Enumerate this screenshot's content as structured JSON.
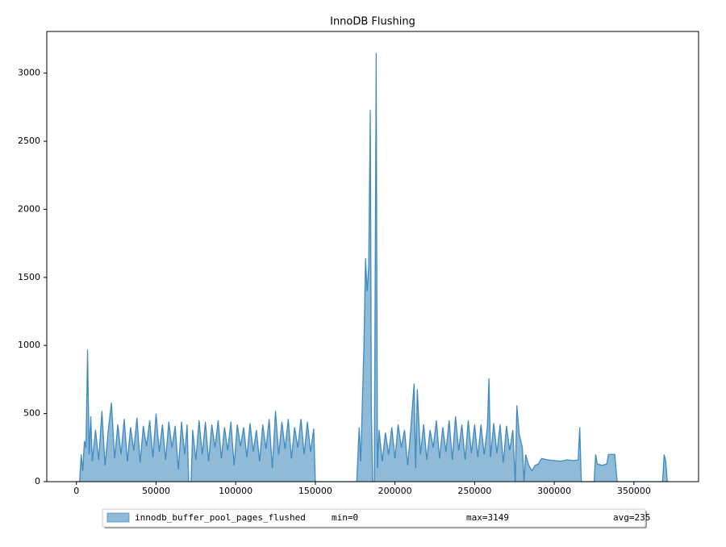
{
  "chart_data": {
    "type": "area",
    "title": "InnoDB Flushing",
    "x": [
      0,
      2000,
      3000,
      4000,
      5000,
      6000,
      7000,
      8000,
      9000,
      10000,
      12000,
      14000,
      16000,
      18000,
      20000,
      22000,
      24000,
      26000,
      28000,
      30000,
      32000,
      34000,
      36000,
      38000,
      40000,
      42000,
      44000,
      46000,
      48000,
      50000,
      52000,
      54000,
      56000,
      58000,
      60000,
      62000,
      64000,
      66000,
      68000,
      69500,
      70500,
      72000,
      73000,
      75000,
      77000,
      79000,
      81000,
      83000,
      85000,
      87000,
      89000,
      91000,
      93000,
      95000,
      97000,
      99000,
      101000,
      103000,
      105000,
      107000,
      109000,
      111000,
      113000,
      115000,
      117000,
      119000,
      121000,
      123000,
      125000,
      127000,
      129000,
      131000,
      133000,
      135000,
      137000,
      139000,
      141000,
      143000,
      145000,
      147000,
      149000,
      150000,
      176000,
      177500,
      178500,
      180500,
      181500,
      182500,
      183500,
      184500,
      185200,
      186000,
      187000,
      188200,
      189000,
      190000,
      192000,
      194000,
      196000,
      198000,
      200000,
      202000,
      204000,
      206000,
      208000,
      210000,
      212000,
      213000,
      214000,
      216000,
      218000,
      220000,
      222000,
      224000,
      226000,
      228000,
      230000,
      232000,
      234000,
      236000,
      238000,
      240000,
      242000,
      244000,
      246000,
      248000,
      250000,
      252000,
      254000,
      256000,
      258000,
      259000,
      260000,
      262000,
      264000,
      266000,
      268000,
      270000,
      272000,
      274000,
      275500,
      276500,
      278000,
      280000,
      281000,
      282000,
      284000,
      286000,
      288000,
      290000,
      292000,
      296000,
      300000,
      304000,
      308000,
      312000,
      315000,
      316000,
      317000,
      325000,
      326000,
      327000,
      330000,
      333000,
      334000,
      338000,
      339500,
      368000,
      369000,
      370000,
      371000,
      372000
    ],
    "series": [
      {
        "name": "innodb_buffer_pool_pages_flushed",
        "color": "#1f77b4",
        "values": [
          0,
          0,
          200,
          80,
          300,
          250,
          970,
          200,
          480,
          150,
          380,
          160,
          520,
          120,
          380,
          580,
          170,
          420,
          200,
          460,
          150,
          400,
          230,
          470,
          140,
          410,
          260,
          450,
          180,
          500,
          220,
          420,
          160,
          440,
          250,
          410,
          90,
          440,
          200,
          420,
          0,
          0,
          380,
          160,
          450,
          200,
          440,
          150,
          420,
          250,
          450,
          170,
          400,
          230,
          440,
          120,
          420,
          260,
          400,
          180,
          430,
          220,
          380,
          150,
          420,
          240,
          460,
          100,
          520,
          200,
          440,
          240,
          460,
          170,
          400,
          250,
          460,
          200,
          440,
          220,
          390,
          0,
          0,
          400,
          150,
          1000,
          1640,
          1400,
          1580,
          2730,
          500,
          0,
          0,
          3149,
          100,
          380,
          150,
          360,
          200,
          400,
          170,
          420,
          250,
          380,
          120,
          400,
          720,
          100,
          680,
          200,
          420,
          160,
          380,
          250,
          450,
          170,
          400,
          220,
          450,
          160,
          480,
          230,
          420,
          160,
          450,
          210,
          420,
          180,
          420,
          200,
          400,
          760,
          180,
          430,
          210,
          420,
          140,
          410,
          230,
          380,
          0,
          560,
          350,
          250,
          0,
          200,
          120,
          80,
          120,
          130,
          170,
          160,
          155,
          150,
          160,
          155,
          160,
          400,
          0,
          0,
          200,
          130,
          120,
          130,
          200,
          200,
          0,
          0,
          200,
          150,
          0,
          0
        ]
      }
    ],
    "legend_stats": [
      "min=0",
      "max=3149",
      "avg=235"
    ],
    "xlim": [
      -18600,
      390600
    ],
    "ylim": [
      0,
      3306
    ],
    "xticks": [
      0,
      50000,
      100000,
      150000,
      200000,
      250000,
      300000,
      350000
    ],
    "yticks": [
      0,
      500,
      1000,
      1500,
      2000,
      2500,
      3000
    ]
  }
}
